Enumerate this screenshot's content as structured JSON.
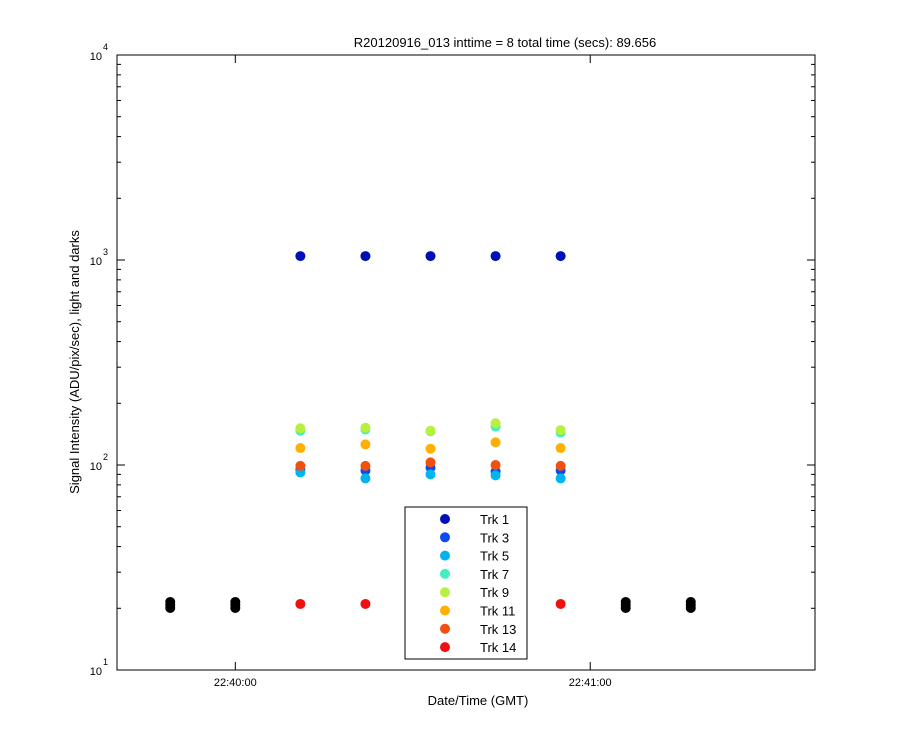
{
  "chart_data": {
    "type": "scatter",
    "title": "R20120916_013 inttime = 8 total time (secs): 89.656",
    "xlabel": "Date/Time (GMT)",
    "ylabel": "Signal Intensity (ADU/pix/sec), light and darks",
    "x_tick_labels": [
      "22:40:00",
      "22:41:00"
    ],
    "y_scale": "log",
    "y_ticks": [
      {
        "base": "10",
        "exp": "1"
      },
      {
        "base": "10",
        "exp": "2"
      },
      {
        "base": "10",
        "exp": "3"
      },
      {
        "base": "10",
        "exp": "4"
      }
    ],
    "ylim": [
      10,
      10000
    ],
    "xlim": [
      "22:39:40",
      "22:41:38"
    ],
    "grid": false,
    "legend_position": "bottom-center",
    "series": [
      {
        "name": "Trk 1",
        "color": "#0010b8",
        "x": [
          "22:40:11",
          "22:40:22",
          "22:40:33",
          "22:40:44",
          "22:40:55"
        ],
        "y": [
          1045,
          1045,
          1045,
          1045,
          1045
        ]
      },
      {
        "name": "Trk 3",
        "color": "#0a4cf0",
        "x": [
          "22:40:11",
          "22:40:22",
          "22:40:33",
          "22:40:44",
          "22:40:55"
        ],
        "y": [
          95,
          94,
          97,
          93,
          94
        ]
      },
      {
        "name": "Trk 5",
        "color": "#00b4f0",
        "x": [
          "22:40:11",
          "22:40:22",
          "22:40:33",
          "22:40:44",
          "22:40:55"
        ],
        "y": [
          92,
          86,
          90,
          89,
          86
        ]
      },
      {
        "name": "Trk 7",
        "color": "#40f0c0",
        "x": [
          "22:40:11",
          "22:40:22",
          "22:40:33",
          "22:40:44",
          "22:40:55"
        ],
        "y": [
          147,
          149,
          146,
          154,
          144
        ]
      },
      {
        "name": "Trk 9",
        "color": "#b8f040",
        "x": [
          "22:40:11",
          "22:40:22",
          "22:40:33",
          "22:40:44",
          "22:40:55"
        ],
        "y": [
          151,
          152,
          147,
          160,
          148
        ]
      },
      {
        "name": "Trk 11",
        "color": "#ffb000",
        "x": [
          "22:40:11",
          "22:40:22",
          "22:40:33",
          "22:40:44",
          "22:40:55"
        ],
        "y": [
          121,
          126,
          120,
          129,
          121
        ]
      },
      {
        "name": "Trk 13",
        "color": "#f05010",
        "x": [
          "22:40:11",
          "22:40:22",
          "22:40:33",
          "22:40:44",
          "22:40:55"
        ],
        "y": [
          99,
          99,
          103,
          100,
          99
        ]
      },
      {
        "name": "Trk 14",
        "color": "#f01010",
        "x": [
          "22:40:11",
          "22:40:22",
          "22:40:44",
          "22:40:55"
        ],
        "y": [
          21,
          21,
          21,
          21
        ]
      }
    ],
    "darks": {
      "color": "#000000",
      "x": [
        "22:39:49",
        "22:40:00",
        "22:41:06",
        "22:41:17"
      ],
      "y": [
        21,
        21,
        21,
        21
      ]
    }
  }
}
